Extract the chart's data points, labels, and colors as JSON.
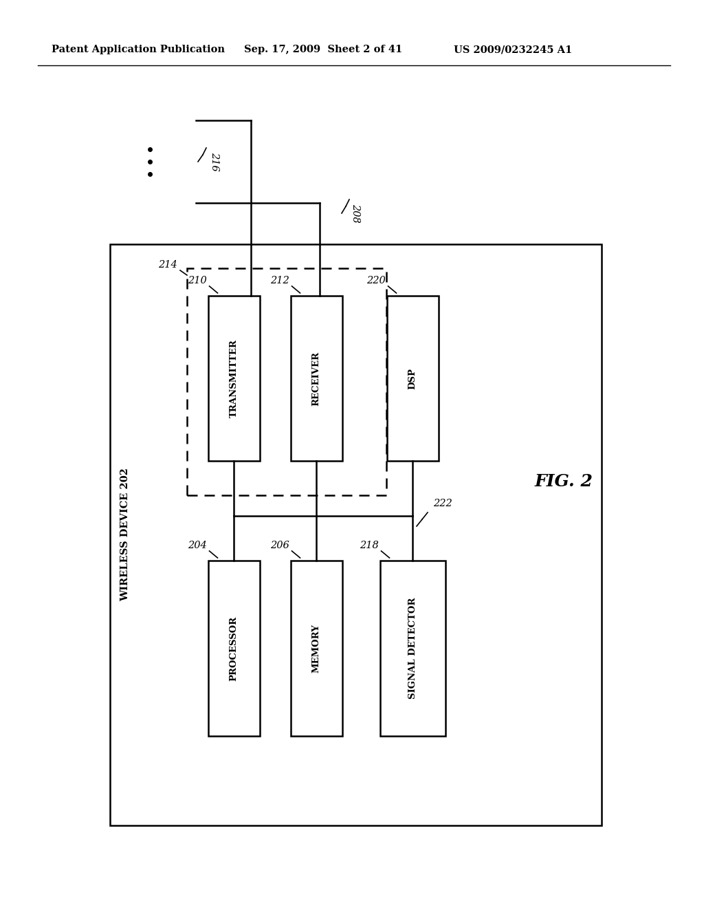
{
  "bg_color": "#ffffff",
  "header_left": "Patent Application Publication",
  "header_center": "Sep. 17, 2009  Sheet 2 of 41",
  "header_right": "US 2009/0232245 A1",
  "fig_label": "FIG. 2",
  "outer_box_label": "WIRELESS DEVICE 202",
  "dashed_box_label": "214",
  "label_210": "210",
  "label_212": "212",
  "label_220": "220",
  "label_204": "204",
  "label_206": "206",
  "label_218": "218",
  "label_216": "216",
  "label_208": "208",
  "label_222": "222",
  "text_transmitter": "TRANSMITTER",
  "text_receiver": "RECEIVER",
  "text_dsp": "DSP",
  "text_processor": "PROCESSOR",
  "text_memory": "MEMORY",
  "text_signal_detector": "SIGNAL DETECTOR"
}
